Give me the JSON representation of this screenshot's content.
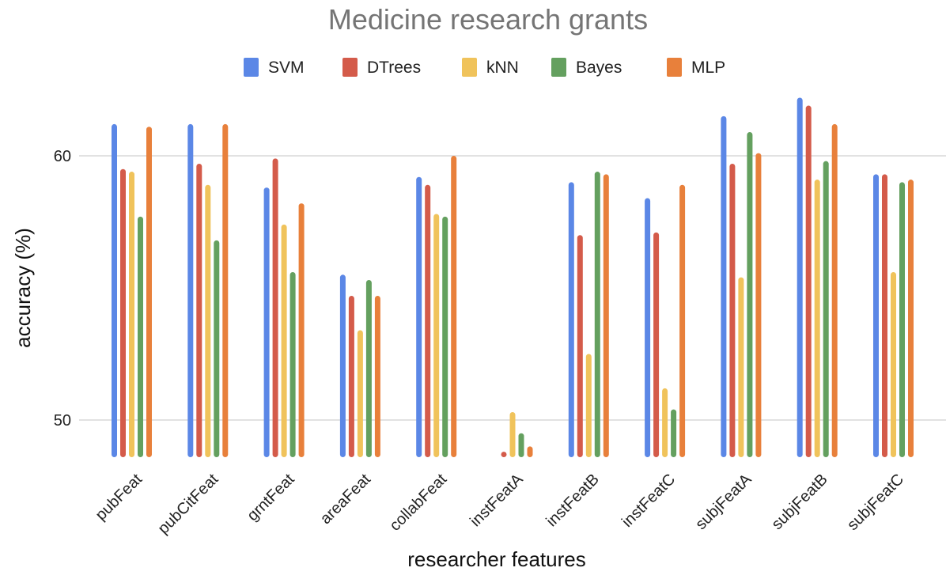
{
  "chart_data": {
    "type": "bar",
    "title": "Medicine research grants",
    "xlabel": "researcher features",
    "ylabel": "accuracy (%)",
    "ylim": [
      48.55,
      63
    ],
    "yticks": [
      50,
      60
    ],
    "grid": true,
    "legend_position": "top",
    "categories": [
      "pubFeat",
      "pubCitFeat",
      "grntFeat",
      "areaFeat",
      "collabFeat",
      "instFeatA",
      "instFeatB",
      "instFeatC",
      "subjFeatA",
      "subjFeatB",
      "subjFeatC"
    ],
    "series": [
      {
        "name": "SVM",
        "color": "#5b87e6",
        "values": [
          61.2,
          61.2,
          58.8,
          55.5,
          59.2,
          null,
          59.0,
          58.4,
          61.5,
          62.2,
          59.3
        ]
      },
      {
        "name": "DTrees",
        "color": "#d45b4a",
        "values": [
          59.5,
          59.7,
          59.9,
          54.7,
          58.9,
          48.8,
          57.0,
          57.1,
          59.7,
          61.9,
          59.3
        ]
      },
      {
        "name": "kNN",
        "color": "#f0c35b",
        "values": [
          59.4,
          58.9,
          57.4,
          53.4,
          57.8,
          50.3,
          52.5,
          51.2,
          55.4,
          59.1,
          55.6
        ]
      },
      {
        "name": "Bayes",
        "color": "#64a05f",
        "values": [
          57.7,
          56.8,
          55.6,
          55.3,
          57.7,
          49.5,
          59.4,
          50.4,
          60.9,
          59.8,
          59.0
        ]
      },
      {
        "name": "MLP",
        "color": "#e8803b",
        "values": [
          61.1,
          61.2,
          58.2,
          54.7,
          60.0,
          49.0,
          59.3,
          58.9,
          60.1,
          61.2,
          59.1
        ]
      }
    ]
  }
}
